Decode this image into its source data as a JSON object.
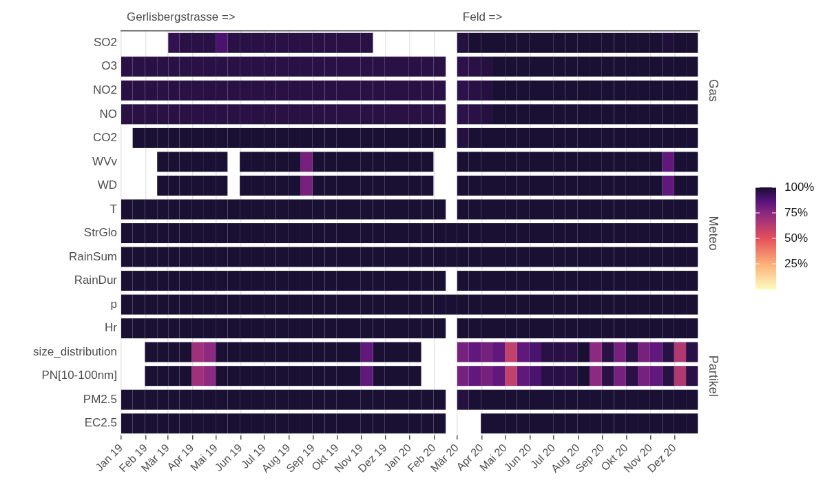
{
  "chart_data": {
    "type": "heatmap",
    "x": [
      "2019-01-08",
      "2019-01-23",
      "2019-02-08",
      "2019-02-23",
      "2019-03-08",
      "2019-03-23",
      "2019-04-08",
      "2019-04-23",
      "2019-05-08",
      "2019-05-23",
      "2019-06-08",
      "2019-06-23",
      "2019-07-08",
      "2019-07-23",
      "2019-08-08",
      "2019-08-23",
      "2019-09-08",
      "2019-09-23",
      "2019-10-08",
      "2019-10-23",
      "2019-11-08",
      "2019-11-23",
      "2019-12-08",
      "2019-12-23",
      "2020-01-08",
      "2020-01-23",
      "2020-02-08",
      "2020-02-23",
      "2020-03-08",
      "2020-03-23",
      "2020-04-08",
      "2020-04-23",
      "2020-05-08",
      "2020-05-23",
      "2020-06-08",
      "2020-06-23",
      "2020-07-08",
      "2020-07-23",
      "2020-08-08",
      "2020-08-23",
      "2020-09-08",
      "2020-09-23",
      "2020-10-08",
      "2020-10-23",
      "2020-11-08",
      "2020-11-23",
      "2020-12-08",
      "2020-12-23"
    ],
    "annotations": [
      "Gerlisbergstrasse =>",
      "Feld =>"
    ],
    "xlim": [
      "2019-01-01",
      "2021-01-01"
    ],
    "xticks": [
      {
        "value": "2019-01-01",
        "label": "Jan 19"
      },
      {
        "value": "2019-02-01",
        "label": "Feb 19"
      },
      {
        "value": "2019-03-01",
        "label": "Mär 19"
      },
      {
        "value": "2019-04-01",
        "label": "Apr 19"
      },
      {
        "value": "2019-05-01",
        "label": "Mai 19"
      },
      {
        "value": "2019-06-01",
        "label": "Jun 19"
      },
      {
        "value": "2019-07-01",
        "label": "Jul 19"
      },
      {
        "value": "2019-08-01",
        "label": "Aug 19"
      },
      {
        "value": "2019-09-01",
        "label": "Sep 19"
      },
      {
        "value": "2019-10-01",
        "label": "Okt 19"
      },
      {
        "value": "2019-11-01",
        "label": "Nov 19"
      },
      {
        "value": "2019-12-01",
        "label": "Dez 19"
      },
      {
        "value": "2020-01-01",
        "label": "Jan 20"
      },
      {
        "value": "2020-02-01",
        "label": "Feb 20"
      },
      {
        "value": "2020-03-01",
        "label": "Mär 20"
      },
      {
        "value": "2020-04-01",
        "label": "Apr 20"
      },
      {
        "value": "2020-05-01",
        "label": "Mai 20"
      },
      {
        "value": "2020-06-01",
        "label": "Jun 20"
      },
      {
        "value": "2020-07-01",
        "label": "Jul 20"
      },
      {
        "value": "2020-08-01",
        "label": "Aug 20"
      },
      {
        "value": "2020-09-01",
        "label": "Sep 20"
      },
      {
        "value": "2020-10-01",
        "label": "Okt 20"
      },
      {
        "value": "2020-11-01",
        "label": "Nov 20"
      },
      {
        "value": "2020-12-01",
        "label": "Dez 20"
      }
    ],
    "grid": "x",
    "clim": [
      0,
      100
    ],
    "cticks": [
      {
        "value": 25,
        "label": "25%"
      },
      {
        "value": 50,
        "label": "50%"
      },
      {
        "value": 75,
        "label": "75%"
      },
      {
        "value": 100,
        "label": "100%"
      }
    ],
    "y_categories": [
      "SO2",
      "O3",
      "NO2",
      "NO",
      "CO2",
      "WVv",
      "WD",
      "T",
      "StrGlo",
      "RainSum",
      "RainDur",
      "p",
      "Hr",
      "size_distribution",
      "PN[10-100nm]",
      "PM2.5",
      "EC2.5"
    ],
    "y2_categories": [
      null,
      null,
      "Gas",
      null,
      null,
      null,
      null,
      null,
      "Meteo",
      null,
      null,
      null,
      null,
      null,
      "Partikel",
      null,
      null
    ],
    "cells": [
      [
        null,
        null,
        null,
        null,
        95,
        97,
        97,
        97,
        90,
        97,
        97,
        97,
        97,
        97,
        97,
        97,
        97,
        97,
        97,
        97,
        97,
        null,
        null,
        null,
        null,
        null,
        null,
        null,
        98,
        100,
        100,
        100,
        100,
        100,
        100,
        100,
        100,
        100,
        100,
        100,
        100,
        100,
        100,
        100,
        100,
        99,
        100,
        100
      ],
      [
        97,
        97,
        97,
        97,
        97,
        97,
        97,
        97,
        97,
        97,
        97,
        97,
        97,
        97,
        97,
        97,
        97,
        97,
        97,
        97,
        97,
        97,
        97,
        97,
        97,
        97,
        97,
        null,
        96,
        97,
        98,
        100,
        100,
        100,
        100,
        100,
        100,
        100,
        100,
        100,
        100,
        100,
        100,
        100,
        100,
        100,
        100,
        100
      ],
      [
        97,
        97,
        97,
        97,
        97,
        97,
        97,
        97,
        97,
        97,
        97,
        97,
        97,
        97,
        97,
        97,
        97,
        97,
        97,
        97,
        97,
        97,
        97,
        97,
        97,
        97,
        97,
        null,
        96,
        97,
        98,
        100,
        100,
        100,
        100,
        100,
        100,
        100,
        100,
        100,
        100,
        100,
        100,
        100,
        100,
        100,
        100,
        100
      ],
      [
        97,
        97,
        97,
        97,
        97,
        97,
        97,
        97,
        97,
        97,
        97,
        97,
        97,
        97,
        97,
        97,
        97,
        97,
        97,
        97,
        97,
        97,
        97,
        97,
        97,
        97,
        97,
        null,
        96,
        97,
        98,
        100,
        100,
        100,
        100,
        100,
        100,
        100,
        100,
        100,
        100,
        100,
        100,
        100,
        100,
        100,
        100,
        100
      ],
      [
        null,
        100,
        100,
        100,
        100,
        100,
        100,
        100,
        100,
        100,
        100,
        100,
        100,
        100,
        100,
        100,
        100,
        100,
        100,
        100,
        100,
        100,
        100,
        100,
        100,
        100,
        100,
        null,
        98,
        100,
        100,
        100,
        100,
        100,
        100,
        100,
        100,
        100,
        100,
        100,
        100,
        100,
        100,
        100,
        100,
        100,
        100,
        100
      ],
      [
        null,
        null,
        null,
        100,
        100,
        100,
        100,
        100,
        100,
        null,
        100,
        100,
        100,
        100,
        100,
        80,
        100,
        100,
        100,
        100,
        100,
        100,
        100,
        100,
        100,
        100,
        null,
        null,
        100,
        100,
        100,
        100,
        100,
        100,
        100,
        100,
        100,
        100,
        100,
        100,
        100,
        100,
        100,
        100,
        100,
        85,
        100,
        100
      ],
      [
        null,
        null,
        null,
        100,
        100,
        100,
        100,
        100,
        100,
        null,
        100,
        100,
        100,
        100,
        100,
        80,
        100,
        100,
        100,
        100,
        100,
        100,
        100,
        100,
        100,
        100,
        null,
        null,
        100,
        100,
        100,
        100,
        100,
        100,
        100,
        100,
        100,
        100,
        100,
        100,
        100,
        100,
        100,
        100,
        100,
        85,
        100,
        100
      ],
      [
        100,
        100,
        100,
        100,
        100,
        100,
        100,
        100,
        100,
        100,
        100,
        100,
        100,
        100,
        100,
        100,
        100,
        100,
        100,
        100,
        100,
        100,
        100,
        100,
        100,
        100,
        100,
        null,
        100,
        100,
        100,
        100,
        100,
        100,
        100,
        100,
        100,
        100,
        100,
        100,
        100,
        100,
        100,
        100,
        100,
        100,
        100,
        100
      ],
      [
        100,
        100,
        100,
        100,
        100,
        100,
        100,
        100,
        100,
        100,
        100,
        100,
        100,
        100,
        100,
        100,
        100,
        100,
        100,
        100,
        100,
        100,
        100,
        100,
        100,
        100,
        100,
        100,
        100,
        100,
        100,
        100,
        100,
        100,
        100,
        100,
        100,
        100,
        100,
        100,
        100,
        100,
        100,
        100,
        100,
        100,
        100,
        100
      ],
      [
        100,
        100,
        100,
        100,
        100,
        100,
        100,
        100,
        100,
        100,
        100,
        100,
        100,
        100,
        100,
        100,
        100,
        100,
        100,
        100,
        100,
        100,
        100,
        100,
        100,
        100,
        100,
        100,
        100,
        100,
        100,
        100,
        100,
        100,
        100,
        100,
        100,
        100,
        100,
        100,
        100,
        100,
        100,
        100,
        100,
        100,
        100,
        100
      ],
      [
        100,
        100,
        100,
        100,
        100,
        100,
        100,
        100,
        100,
        100,
        100,
        100,
        100,
        100,
        100,
        100,
        100,
        100,
        100,
        100,
        100,
        100,
        100,
        100,
        100,
        100,
        100,
        null,
        100,
        100,
        100,
        100,
        100,
        100,
        100,
        100,
        100,
        100,
        100,
        100,
        100,
        100,
        100,
        100,
        100,
        100,
        100,
        100
      ],
      [
        100,
        100,
        100,
        100,
        100,
        100,
        100,
        100,
        100,
        100,
        100,
        100,
        100,
        100,
        100,
        100,
        100,
        100,
        100,
        100,
        100,
        100,
        100,
        100,
        100,
        100,
        100,
        100,
        100,
        100,
        100,
        100,
        100,
        100,
        100,
        100,
        100,
        100,
        100,
        100,
        100,
        100,
        100,
        100,
        100,
        100,
        100,
        100
      ],
      [
        100,
        100,
        100,
        100,
        100,
        100,
        100,
        100,
        100,
        100,
        100,
        100,
        100,
        100,
        100,
        100,
        100,
        100,
        100,
        100,
        100,
        100,
        100,
        100,
        100,
        100,
        100,
        null,
        100,
        100,
        100,
        100,
        100,
        100,
        100,
        100,
        100,
        100,
        100,
        100,
        100,
        100,
        100,
        100,
        100,
        100,
        100,
        100
      ],
      [
        null,
        null,
        100,
        100,
        100,
        100,
        70,
        75,
        100,
        100,
        100,
        100,
        100,
        100,
        100,
        100,
        100,
        100,
        100,
        100,
        85,
        100,
        100,
        100,
        100,
        null,
        null,
        null,
        80,
        85,
        80,
        85,
        60,
        85,
        90,
        97,
        97,
        97,
        100,
        75,
        97,
        80,
        97,
        80,
        85,
        97,
        65,
        97
      ],
      [
        null,
        null,
        100,
        100,
        100,
        100,
        70,
        75,
        100,
        100,
        100,
        100,
        100,
        100,
        100,
        100,
        100,
        100,
        100,
        100,
        85,
        100,
        100,
        100,
        100,
        null,
        null,
        null,
        80,
        85,
        80,
        85,
        60,
        85,
        90,
        97,
        97,
        97,
        100,
        75,
        97,
        80,
        97,
        80,
        85,
        97,
        65,
        97
      ],
      [
        100,
        100,
        100,
        100,
        100,
        100,
        100,
        100,
        100,
        100,
        100,
        100,
        100,
        100,
        100,
        100,
        100,
        100,
        100,
        100,
        100,
        100,
        100,
        100,
        100,
        100,
        100,
        null,
        98,
        100,
        100,
        100,
        100,
        100,
        100,
        100,
        100,
        100,
        100,
        100,
        100,
        100,
        100,
        100,
        100,
        100,
        100,
        100
      ],
      [
        100,
        100,
        100,
        100,
        100,
        100,
        100,
        100,
        100,
        100,
        100,
        100,
        100,
        100,
        100,
        100,
        100,
        100,
        100,
        100,
        100,
        100,
        100,
        100,
        100,
        100,
        100,
        null,
        null,
        null,
        100,
        100,
        100,
        100,
        100,
        100,
        100,
        100,
        100,
        100,
        100,
        100,
        100,
        100,
        100,
        100,
        100,
        100
      ]
    ]
  }
}
